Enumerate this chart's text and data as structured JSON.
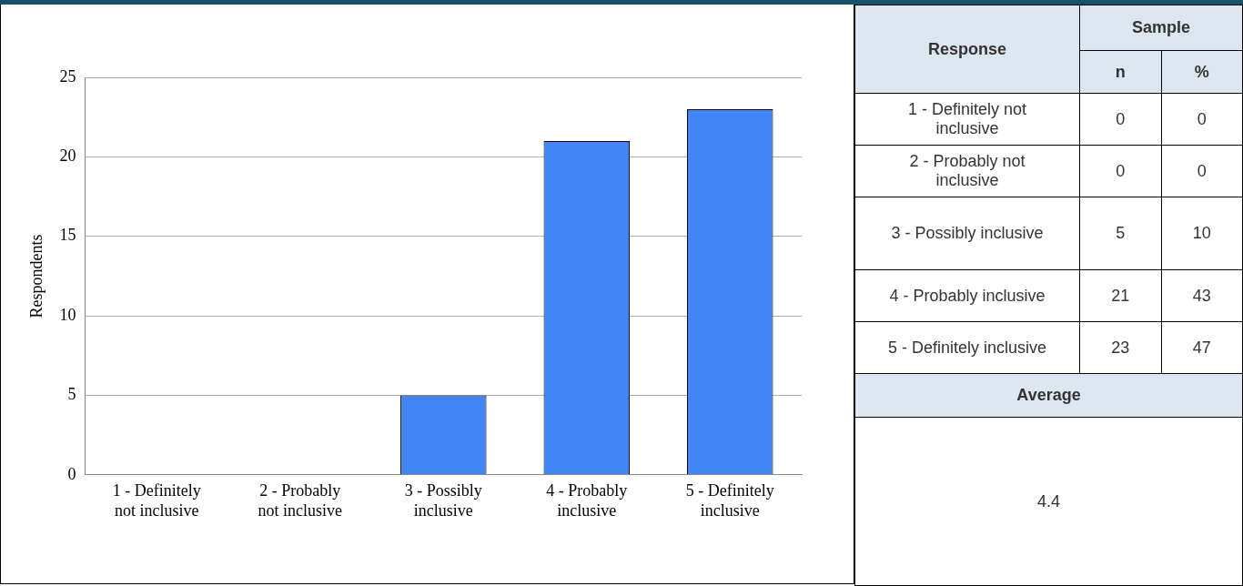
{
  "chart_data": [
    {
      "type": "bar",
      "ylabel": "Respondents",
      "categories": [
        "1 - Definitely not inclusive",
        "2 - Probably not inclusive",
        "3 - Possibly inclusive",
        "4 - Probably inclusive",
        "5 - Definitely inclusive"
      ],
      "values": [
        0,
        0,
        5,
        21,
        23
      ],
      "color": "#4285f4",
      "ylim": [
        0,
        25
      ],
      "yticks": [
        0,
        5,
        10,
        15,
        20,
        25
      ],
      "grid": "y"
    },
    {
      "type": "other",
      "categories": [
        "1 - Definitely not inclusive",
        "2 - Probably not inclusive",
        "3 - Possibly inclusive",
        "4 - Probably inclusive",
        "5 - Definitely inclusive"
      ],
      "series": [
        {
          "name": "n",
          "values": [
            0,
            0,
            5,
            21,
            23
          ]
        },
        {
          "name": "%",
          "values": [
            0,
            0,
            10,
            43,
            47
          ]
        }
      ],
      "data_labels": true,
      "annotations": [
        "Response",
        "Sample",
        "Average",
        "4.4"
      ]
    }
  ]
}
